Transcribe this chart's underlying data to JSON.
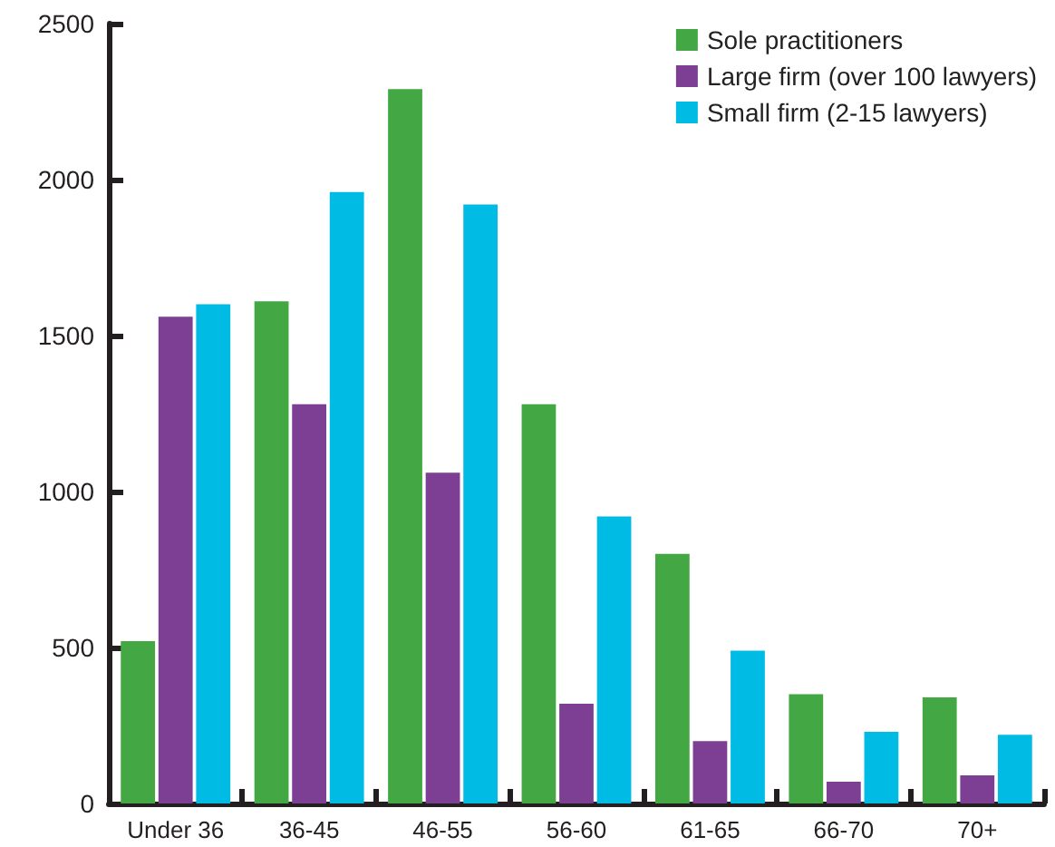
{
  "chart_data": {
    "type": "bar",
    "categories": [
      "Under 36",
      "36-45",
      "46-55",
      "56-60",
      "61-65",
      "66-70",
      "70+"
    ],
    "series": [
      {
        "name": "Sole practitioners",
        "color": "#43a843",
        "values": [
          520,
          1610,
          2290,
          1280,
          800,
          350,
          340
        ]
      },
      {
        "name": "Large firm (over 100 lawyers)",
        "color": "#7c3f94",
        "values": [
          1560,
          1280,
          1060,
          320,
          200,
          70,
          90
        ]
      },
      {
        "name": "Small firm (2-15 lawyers)",
        "color": "#00bbe3",
        "values": [
          1600,
          1960,
          1920,
          920,
          490,
          230,
          220
        ]
      }
    ],
    "ylim": [
      0,
      2500
    ],
    "yticks": [
      0,
      500,
      1000,
      1500,
      2000,
      2500
    ],
    "grid": false,
    "legend": "top right"
  }
}
